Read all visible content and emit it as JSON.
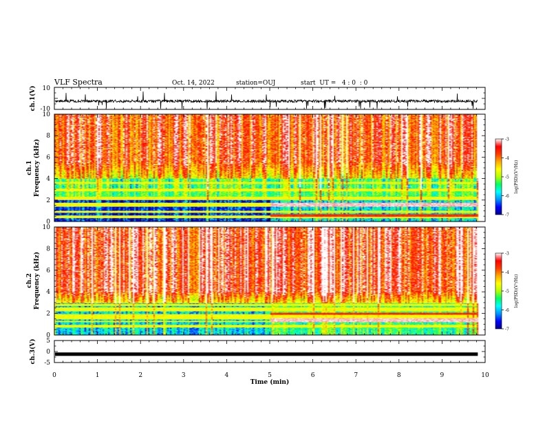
{
  "header": {
    "title": "VLF Spectra",
    "date": "Oct. 14, 2022",
    "station": "station=OUJ",
    "start": "start  UT =   4 : 0  : 0"
  },
  "colorbar": {
    "label": "log(PSD)(V²/Hz)",
    "ticks": [
      "-3",
      "-4",
      "-5",
      "-6",
      "-7"
    ],
    "colors": [
      "#00008a",
      "#0000ff",
      "#0096ff",
      "#00ffff",
      "#00ff64",
      "#b4ff00",
      "#ffff00",
      "#ffaa00",
      "#ff3c00",
      "#ff0000",
      "#ffffff"
    ]
  },
  "chart_data": [
    {
      "type": "line",
      "name": "ch1-waveform",
      "ylabel": "ch.1(V)",
      "xlim": [
        0,
        10
      ],
      "ylim": [
        -10,
        10
      ],
      "yticks": [
        "10",
        "-10"
      ],
      "baseline": -2.5,
      "noise": 1.2,
      "end_min": 9.83
    },
    {
      "type": "heatmap",
      "name": "ch1-spectrogram",
      "ylabel": "ch.1",
      "ylabel2": "Frequency (kHz)",
      "xlim": [
        0,
        10
      ],
      "ylim": [
        0,
        10
      ],
      "yticks": [
        "0",
        "2",
        "4",
        "6",
        "8",
        "10"
      ],
      "end_min": 9.83,
      "clim": [
        -7,
        -3
      ]
    },
    {
      "type": "heatmap",
      "name": "ch2-spectrogram",
      "ylabel": "ch.2",
      "ylabel2": "Frequency (kHz)",
      "xlim": [
        0,
        10
      ],
      "ylim": [
        0,
        10
      ],
      "yticks": [
        "0",
        "2",
        "4",
        "6",
        "8",
        "10"
      ],
      "end_min": 9.83,
      "clim": [
        -7,
        -3
      ]
    },
    {
      "type": "line",
      "name": "ch3-waveform",
      "ylabel": "ch.3(V)",
      "xlabel": "Time (min)",
      "xlim": [
        0,
        10
      ],
      "ylim": [
        -5,
        5
      ],
      "yticks": [
        "5",
        "0",
        "-5"
      ],
      "xticks": [
        "0",
        "1",
        "2",
        "3",
        "4",
        "5",
        "6",
        "7",
        "8",
        "9",
        "10"
      ],
      "baseline": -1.2,
      "end_min": 9.83
    }
  ]
}
